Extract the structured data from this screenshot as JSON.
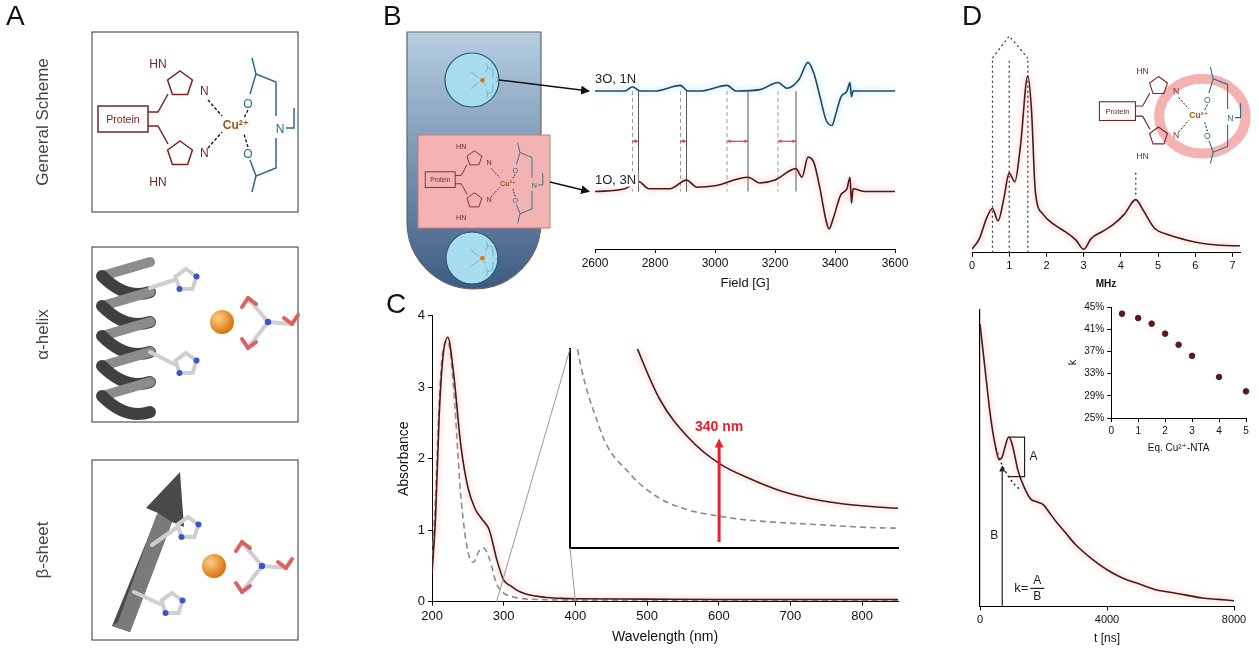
{
  "panel_labels": [
    "A",
    "B",
    "C",
    "D"
  ],
  "panel_a": {
    "rows": [
      "General Scheme",
      "α-helix",
      "β-sheet"
    ]
  },
  "molecule": {
    "protein": "Protein",
    "hn": "HN",
    "n": "N",
    "o": "O",
    "cu": "Cu²⁺"
  },
  "chart_data": [
    {
      "type": "line",
      "x_label": "Field [G]",
      "xlim": [
        2600,
        3600
      ],
      "xticks": [
        2600,
        2800,
        3000,
        3200,
        3400,
        3600
      ],
      "ylim": [
        0.5,
        7.5
      ],
      "tick_labels": "x",
      "grid": false,
      "series": [
        {
          "name": "3O, 1N",
          "color": "#1c4a66",
          "line_style": "solid",
          "x": [
            2600,
            2700,
            2725,
            2750,
            2800,
            2885,
            2910,
            2950,
            3040,
            3070,
            3150,
            3210,
            3240,
            3280,
            3310,
            3330,
            3350,
            3370,
            3390,
            3400,
            3420,
            3440,
            3450,
            3455,
            3460,
            3500,
            3600
          ],
          "values": [
            6,
            6,
            6.15,
            6,
            6,
            6.2,
            6,
            6,
            6.2,
            6,
            6.05,
            6.3,
            6.1,
            6.4,
            7,
            6.6,
            5.8,
            5,
            4.8,
            5.1,
            5.8,
            6,
            6.3,
            5.8,
            6,
            6,
            6
          ]
        },
        {
          "name": "1O, 3N",
          "color": "#4a1a1a",
          "line_style": "solid",
          "x": [
            2600,
            2700,
            2745,
            2780,
            2850,
            2905,
            2940,
            3000,
            3110,
            3150,
            3200,
            3270,
            3290,
            3310,
            3330,
            3350,
            3370,
            3380,
            3395,
            3420,
            3440,
            3450,
            3455,
            3460,
            3500,
            3600
          ],
          "values": [
            2.5,
            2.6,
            2.85,
            2.6,
            2.6,
            2.9,
            2.65,
            2.7,
            3.0,
            2.8,
            2.9,
            3.3,
            3.0,
            3.7,
            3.5,
            2.6,
            1.5,
            1.2,
            1.6,
            2.4,
            2.6,
            3.0,
            2.1,
            2.6,
            2.5,
            2.5
          ]
        }
      ],
      "reference_lines": {
        "dashed": [
          2725,
          2885,
          3040,
          3210
        ],
        "solid": [
          2745,
          2905,
          3110,
          3270
        ]
      }
    },
    {
      "type": "line",
      "x_label": "Wavelength (nm)",
      "y_label": "Absorbance",
      "xlim": [
        200,
        850
      ],
      "xticks": [
        200,
        300,
        400,
        500,
        600,
        700,
        800
      ],
      "ylim": [
        0,
        4
      ],
      "yticks": [
        0,
        1,
        2,
        3,
        4
      ],
      "grid": false,
      "series": [
        {
          "color": "#4a1a1a",
          "line_style": "solid",
          "x": [
            200,
            205,
            210,
            215,
            222,
            230,
            240,
            250,
            260,
            270,
            280,
            290,
            300,
            310,
            320,
            330,
            340,
            350,
            360,
            370,
            380,
            390,
            400,
            500,
            600,
            700,
            850
          ],
          "values": [
            0.4,
            1.2,
            2.6,
            3.4,
            3.7,
            3.2,
            2.2,
            1.6,
            1.3,
            1.15,
            1.0,
            0.6,
            0.3,
            0.22,
            0.15,
            0.11,
            0.085,
            0.07,
            0.058,
            0.05,
            0.045,
            0.042,
            0.04,
            0.035,
            0.03,
            0.03,
            0.03
          ]
        },
        {
          "color": "#8a8a8a",
          "line_style": "dashed",
          "x": [
            200,
            205,
            210,
            215,
            222,
            230,
            240,
            250,
            258,
            265,
            272,
            280,
            290,
            300,
            310,
            320,
            330,
            340,
            350,
            370,
            400,
            500,
            850
          ],
          "values": [
            0.5,
            1.5,
            2.8,
            3.5,
            3.65,
            3.0,
            1.5,
            0.7,
            0.55,
            0.7,
            0.75,
            0.6,
            0.25,
            0.12,
            0.075,
            0.05,
            0.038,
            0.032,
            0.028,
            0.024,
            0.02,
            0.02,
            0.02
          ]
        }
      ],
      "inset": {
        "xlim": [
          290,
          400
        ],
        "ylim": [
          0,
          0.2
        ],
        "tick_labels": false,
        "annotation": {
          "x": 340,
          "y": 0.11,
          "label": "340 nm",
          "color": "#e8202a"
        }
      }
    },
    {
      "type": "line",
      "x_label": "MHz",
      "xlim": [
        0,
        7.2
      ],
      "xticks": [
        0,
        1,
        2,
        3,
        4,
        5,
        6,
        7
      ],
      "ylim": [
        0,
        1.1
      ],
      "tick_labels": "x",
      "grid": false,
      "series": [
        {
          "color": "#4a1a1a",
          "line_style": "solid",
          "x": [
            0,
            0.2,
            0.4,
            0.55,
            0.7,
            0.85,
            1.0,
            1.15,
            1.3,
            1.5,
            1.6,
            1.7,
            1.9,
            2.2,
            2.5,
            2.8,
            3.0,
            3.2,
            3.5,
            3.8,
            4.1,
            4.4,
            4.6,
            4.9,
            5.3,
            5.8,
            6.3,
            7.0,
            7.2
          ],
          "values": [
            0.02,
            0.08,
            0.2,
            0.25,
            0.18,
            0.3,
            0.45,
            0.4,
            0.6,
            1.0,
            0.8,
            0.35,
            0.22,
            0.16,
            0.12,
            0.07,
            0.02,
            0.08,
            0.12,
            0.16,
            0.22,
            0.3,
            0.24,
            0.14,
            0.1,
            0.07,
            0.05,
            0.04,
            0.04
          ]
        }
      ],
      "peak_lines": [
        0.55,
        1.0,
        1.5
      ],
      "peak_marks": [
        4.4
      ]
    },
    {
      "type": "line",
      "x_label": "t [ns]",
      "xlim": [
        0,
        8000
      ],
      "xticks": [
        0,
        4000,
        8000
      ],
      "ylim": [
        0,
        1.05
      ],
      "tick_labels": "x",
      "grid": false,
      "series": [
        {
          "color": "#4a1a1a",
          "line_style": "solid",
          "x": [
            0,
            100,
            200,
            300,
            400,
            500,
            600,
            700,
            800,
            900,
            1000,
            1200,
            1400,
            1600,
            1800,
            2000,
            2200,
            2400,
            2700,
            3000,
            3500,
            4000,
            4500,
            5000,
            5500,
            6000,
            6500,
            7000,
            7500,
            8000
          ],
          "values": [
            1.0,
            0.9,
            0.8,
            0.7,
            0.62,
            0.56,
            0.52,
            0.53,
            0.57,
            0.6,
            0.58,
            0.48,
            0.42,
            0.38,
            0.37,
            0.36,
            0.33,
            0.3,
            0.26,
            0.22,
            0.17,
            0.13,
            0.1,
            0.08,
            0.06,
            0.05,
            0.04,
            0.03,
            0.025,
            0.02
          ]
        },
        {
          "color": "#333333",
          "line_style": "dotted",
          "x": [
            500,
            700,
            900,
            1100,
            1300
          ],
          "values": [
            0.56,
            0.5,
            0.46,
            0.43,
            0.41
          ]
        }
      ],
      "annotations": [
        {
          "label": "A",
          "x": 900,
          "y_from": 0.46,
          "y_to": 0.6
        },
        {
          "label": "B",
          "x": 700,
          "y_from": 0,
          "y_to": 0.5
        }
      ],
      "formula": {
        "lhs": "k=",
        "numerator": "A",
        "denominator": "B"
      }
    },
    {
      "type": "scatter",
      "x_label": "Eq. Cu²⁺-NTA",
      "y_label": "k",
      "xlim": [
        0,
        5
      ],
      "xticks": [
        0,
        1,
        2,
        3,
        4,
        5
      ],
      "ylim": [
        25,
        45
      ],
      "yticks": [
        {
          "value": 25,
          "label": "25%"
        },
        {
          "value": 29,
          "label": "29%"
        },
        {
          "value": 33,
          "label": "33%"
        },
        {
          "value": 37,
          "label": "37%"
        },
        {
          "value": 41,
          "label": "41%"
        },
        {
          "value": 45,
          "label": "45%"
        }
      ],
      "grid": false,
      "color": "#5a1a1a",
      "marker": "circle",
      "x": [
        0.4,
        1,
        1.5,
        2,
        2.5,
        3,
        4,
        5
      ],
      "values": [
        43.8,
        43,
        42,
        40.2,
        38.2,
        36.2,
        32.4,
        29.8
      ]
    }
  ]
}
